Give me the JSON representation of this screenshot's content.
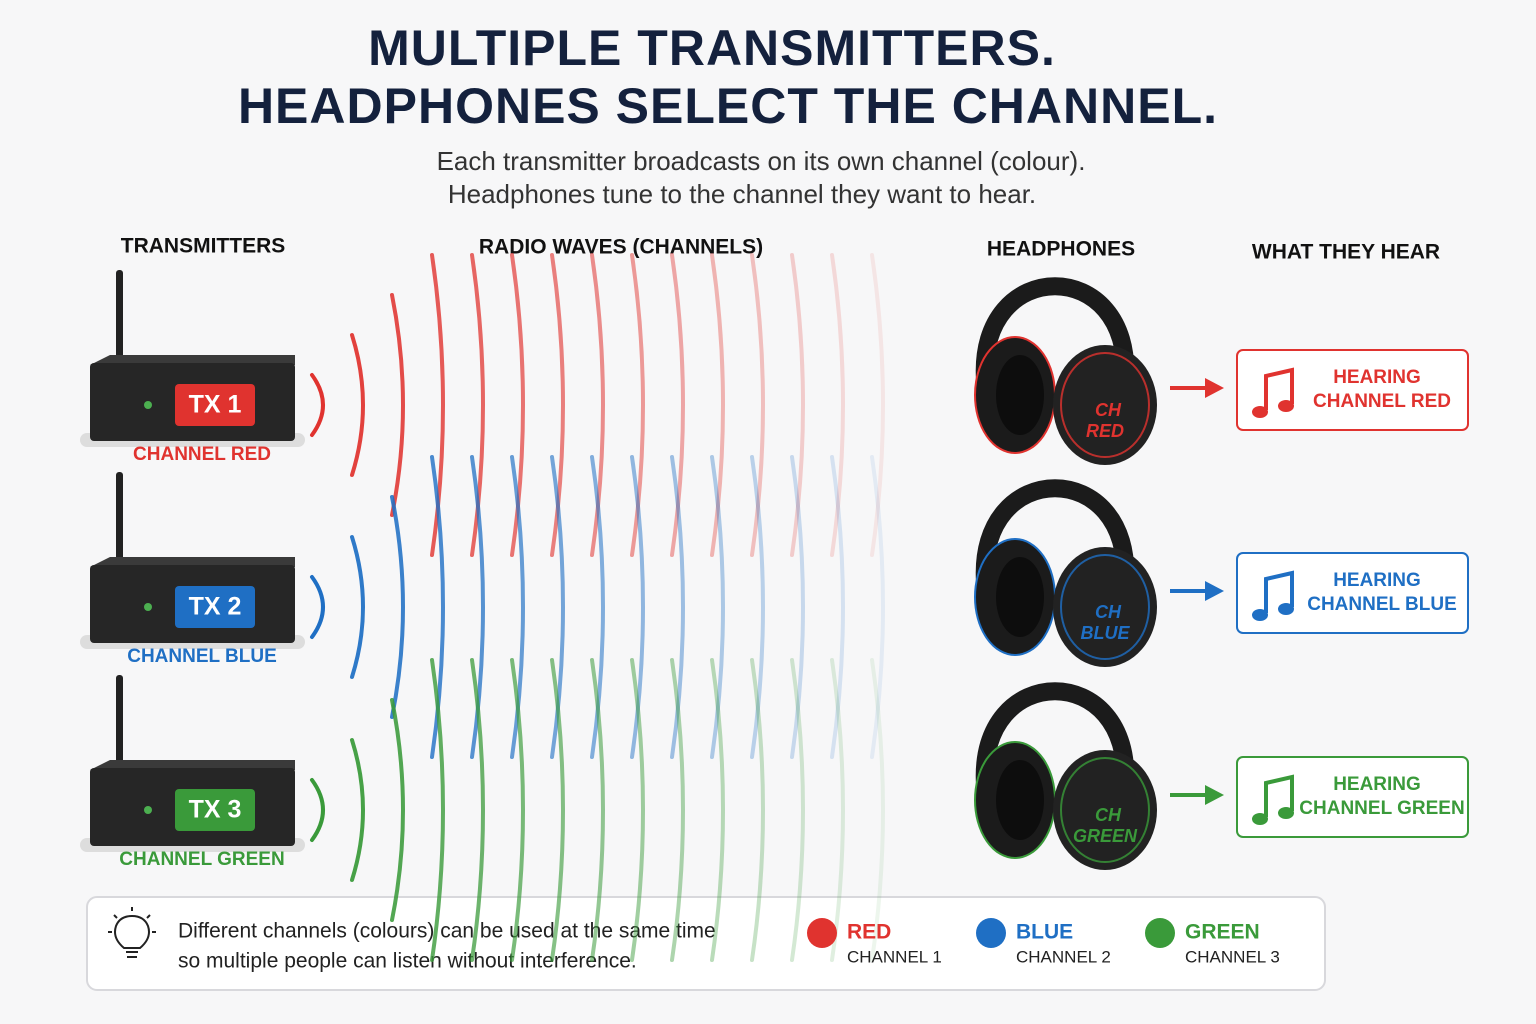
{
  "header": {
    "title": [
      "MULTIPLE TRANSMITTERS.",
      "HEADPHONES SELECT THE CHANNEL."
    ],
    "subtitle": [
      "Each transmitter broadcasts on its own channel (colour).",
      "Headphones tune to the channel they want to hear."
    ]
  },
  "columns": [
    "TRANSMITTERS",
    "RADIO WAVES (CHANNELS)",
    "HEADPHONES",
    "WHAT THEY HEAR"
  ],
  "rows": [
    {
      "transmitter": "TX 1",
      "channel": "CHANNEL RED",
      "headphone_label": [
        "CH",
        "RED"
      ],
      "hearing": [
        "HEARING",
        "CHANNEL RED"
      ],
      "color": "#e0332f"
    },
    {
      "transmitter": "TX 2",
      "channel": "CHANNEL BLUE",
      "headphone_label": [
        "CH",
        "BLUE"
      ],
      "hearing": [
        "HEARING",
        "CHANNEL BLUE"
      ],
      "color": "#1f6fc4"
    },
    {
      "transmitter": "TX 3",
      "channel": "CHANNEL GREEN",
      "headphone_label": [
        "CH",
        "GREEN"
      ],
      "hearing": [
        "HEARING",
        "CHANNEL GREEN"
      ],
      "color": "#3a9a3a"
    }
  ],
  "footer": {
    "note": [
      "Different channels (colours) can be used at the same time",
      "so multiple people can listen without interference."
    ],
    "legend": [
      {
        "name": "RED",
        "channel": "CHANNEL 1",
        "color": "#e0332f"
      },
      {
        "name": "BLUE",
        "channel": "CHANNEL 2",
        "color": "#1f6fc4"
      },
      {
        "name": "GREEN",
        "channel": "CHANNEL 3",
        "color": "#3a9a3a"
      }
    ]
  }
}
